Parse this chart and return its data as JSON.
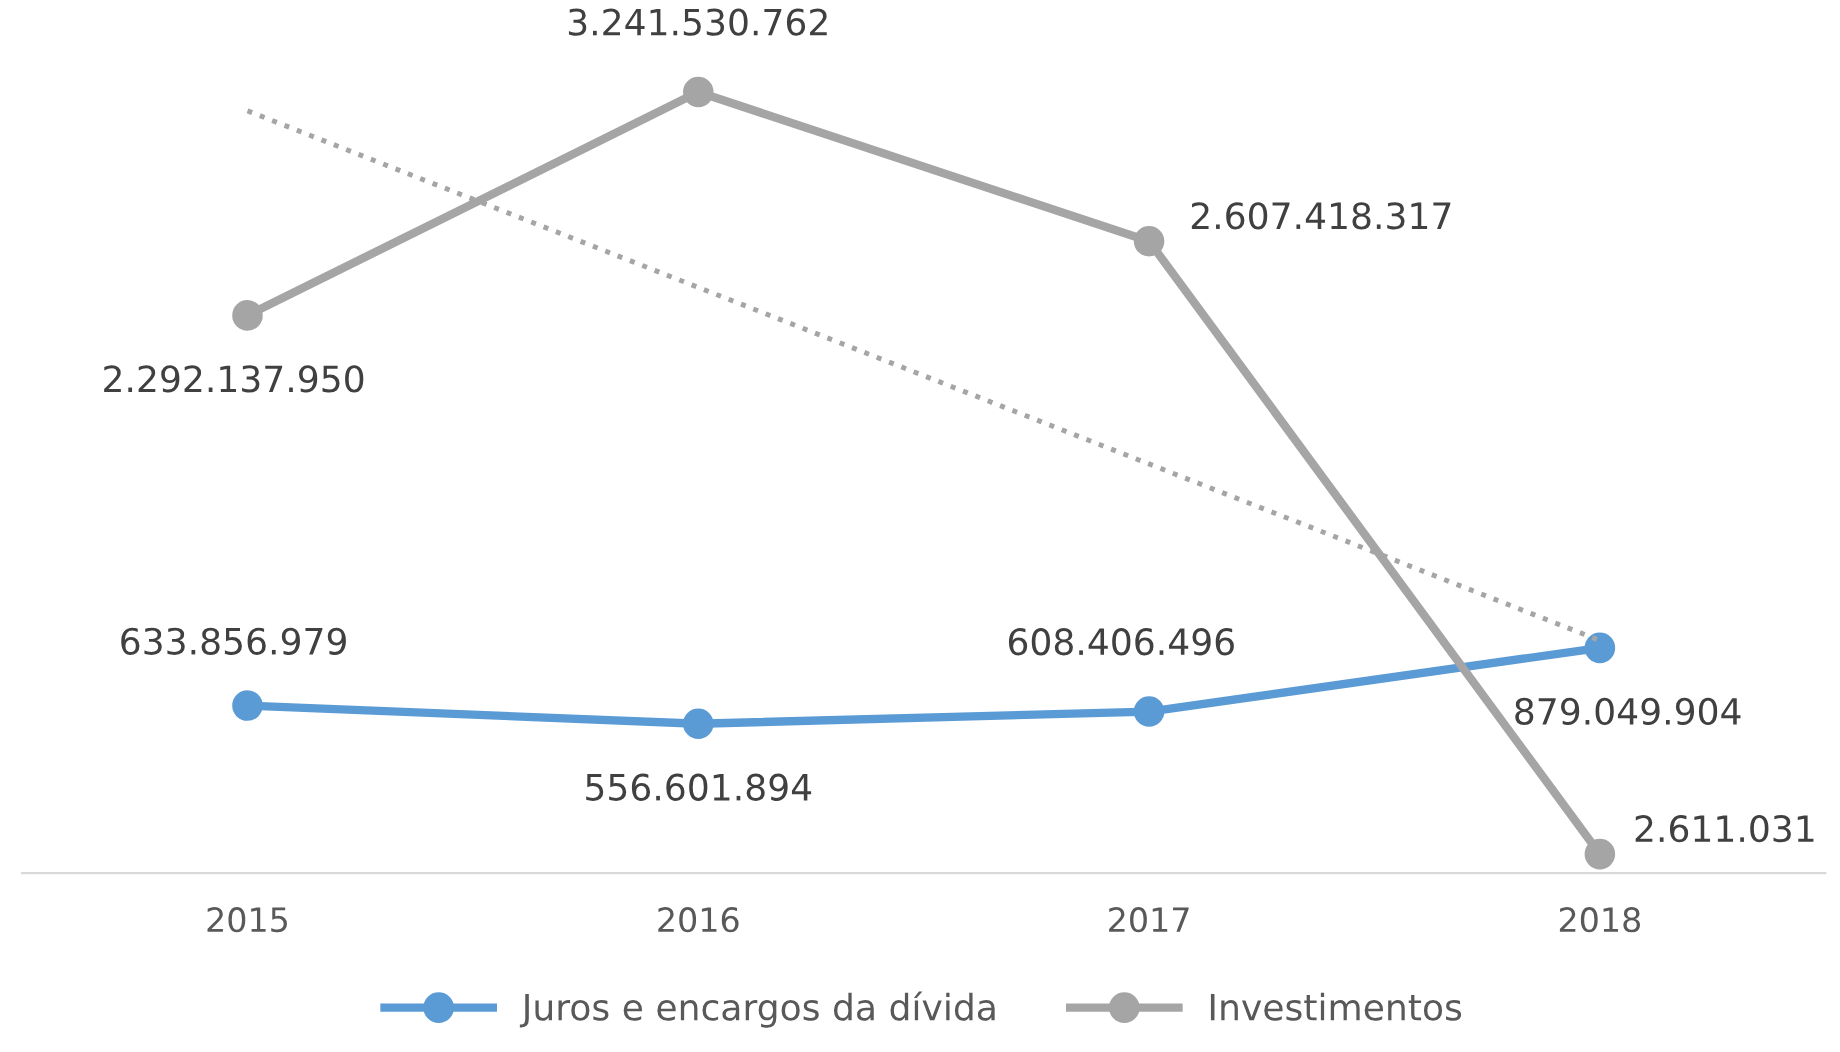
{
  "chart_data": {
    "type": "line",
    "categories": [
      "2015",
      "2016",
      "2017",
      "2018"
    ],
    "series": [
      {
        "name": "Juros e encargos da dívida",
        "color": "#5b9bd5",
        "values": [
          633856979,
          556601894,
          608406496,
          879049904
        ],
        "value_labels": [
          "633.856.979",
          "556.601.894",
          "608.406.496",
          "879.049.904"
        ]
      },
      {
        "name": "Investimentos",
        "color": "#a5a5a5",
        "values": [
          2292137950,
          3241530762,
          2607418317,
          2611031
        ],
        "value_labels": [
          "2.292.137.950",
          "3.241.530.762",
          "2.607.418.317",
          "2.611.031"
        ]
      },
      {
        "type": "line",
        "color": "#a5a5a5",
        "line_style": "dotted",
        "marker": "none",
        "values": [
          3161328495,
          2411059175,
          1660789855,
          910520535
        ]
      }
    ],
    "marker": "circle",
    "line_style": "solid",
    "tick_labels": "x",
    "grid": false,
    "legend": "bottom"
  }
}
